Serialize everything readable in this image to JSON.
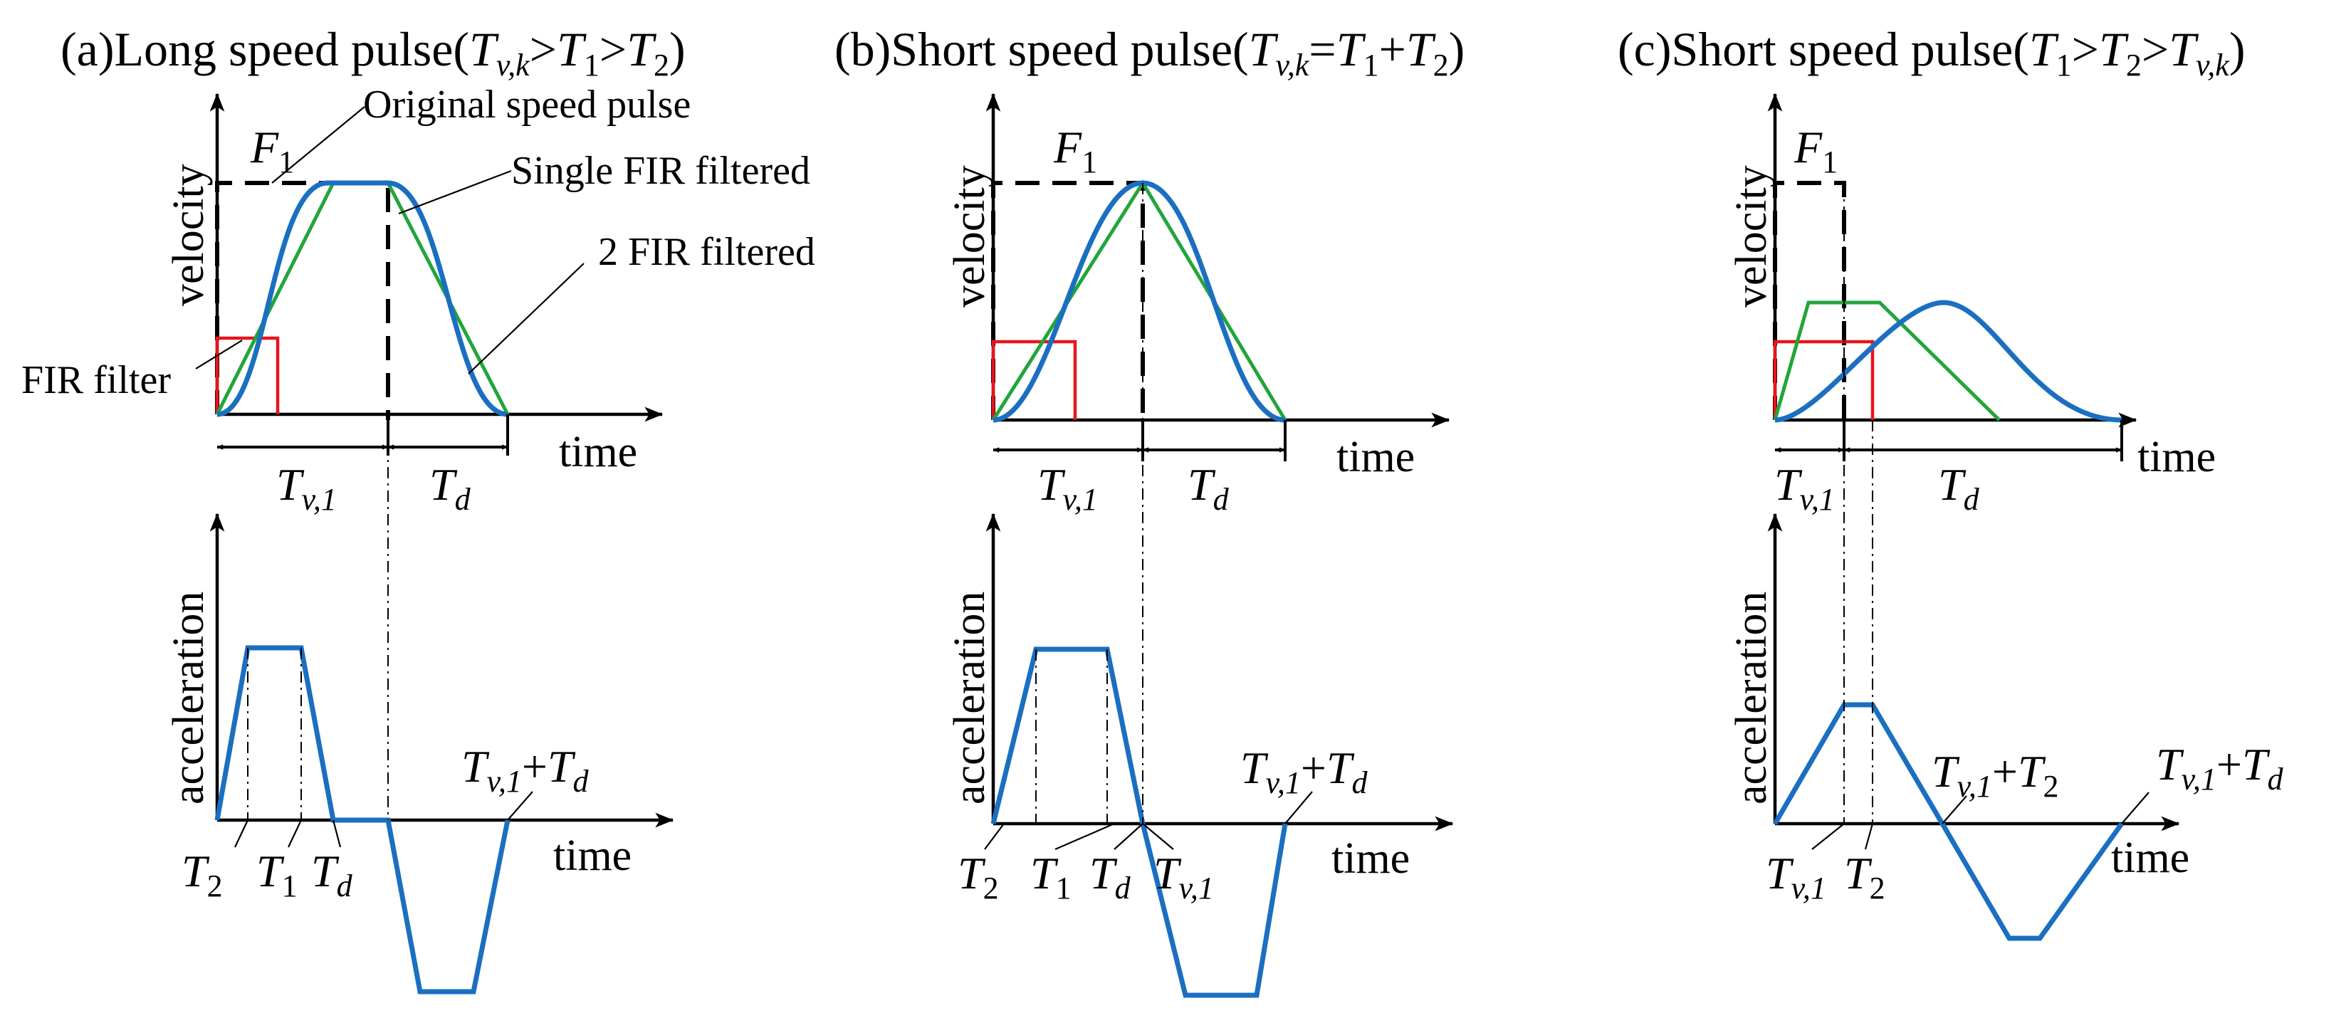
{
  "panels": [
    {
      "id": "a",
      "title_prefix": "(a)Long speed pulse(",
      "condition": "Tv,k>T1>T2",
      "title_suffix": ")",
      "v_axis": "velocity",
      "time_label": "time",
      "a_axis": "acceleration",
      "time_label2": "time",
      "F_label": "F",
      "F_sub": "1",
      "annotations": {
        "original": "Original speed pulse",
        "single": "Single FIR filtered",
        "double": "2 FIR filtered",
        "filter": "FIR filter"
      },
      "dim_tv1": "Tv,1",
      "dim_td": "Td",
      "bottom_ticks": [
        "T2",
        "T1",
        "Td"
      ],
      "end_label": "Tv,1+Td"
    },
    {
      "id": "b",
      "title_prefix": "(b)Short speed pulse(",
      "condition": "Tv,k=T1+T2",
      "title_suffix": ")",
      "v_axis": "velocity",
      "time_label": "time",
      "a_axis": "acceleration",
      "time_label2": "time",
      "F_label": "F",
      "F_sub": "1",
      "dim_tv1": "Tv,1",
      "dim_td": "Td",
      "bottom_ticks": [
        "T2",
        "T1",
        "Td",
        "Tv,1"
      ],
      "end_label": "Tv,1+Td"
    },
    {
      "id": "c",
      "title_prefix": "(c)Short speed pulse(",
      "condition": "T1>T2>Tv,k",
      "title_suffix": ")",
      "v_axis": "velocity",
      "time_label": "time",
      "a_axis": "acceleration",
      "time_label2": "time",
      "F_label": "F",
      "F_sub": "1",
      "dim_tv1": "Tv,1",
      "dim_td": "Td",
      "bottom_ticks": [
        "Tv,1",
        "T2"
      ],
      "mid_label": "Tv,1+T2",
      "end_label": "Tv,1+Td"
    }
  ],
  "colors": {
    "original": "#000000",
    "fir_filter": "#e8141a",
    "single_fir": "#22a53a",
    "double_fir": "#1a6fc1"
  }
}
